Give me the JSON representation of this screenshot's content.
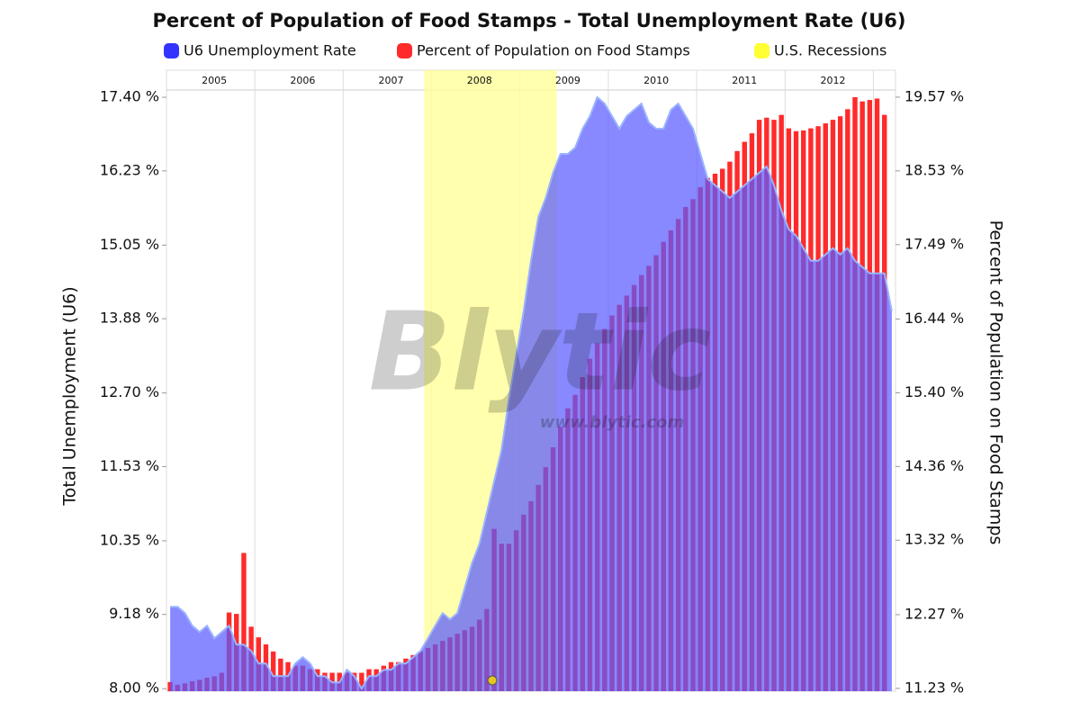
{
  "chart_data": {
    "type": "bar_area",
    "title": "Percent of Population of Food Stamps - Total Unemployment Rate (U6)",
    "y_label": "Total Unemployment (U6)",
    "y2_label": "Percent of Population on Food Stamps",
    "watermark": "Blytic",
    "watermark_url": "www.blytic.com",
    "categories": [
      null,
      null,
      null,
      null,
      null,
      null,
      "2005",
      null,
      null,
      null,
      null,
      null,
      null,
      null,
      null,
      null,
      null,
      null,
      "2006",
      null,
      null,
      null,
      null,
      null,
      null,
      null,
      null,
      null,
      null,
      null,
      "2007",
      null,
      null,
      null,
      null,
      null,
      null,
      null,
      null,
      null,
      null,
      null,
      "2008",
      null,
      null,
      null,
      null,
      null,
      null,
      null,
      null,
      null,
      null,
      null,
      "2009",
      null,
      null,
      null,
      null,
      null,
      null,
      null,
      null,
      null,
      null,
      null,
      "2010",
      null,
      null,
      null,
      null,
      null,
      null,
      null,
      null,
      null,
      null,
      null,
      "2011",
      null,
      null,
      null,
      null,
      null,
      null,
      null,
      null,
      null,
      null,
      null,
      "2012",
      null,
      null,
      null,
      null,
      null,
      null,
      null,
      null
    ],
    "series": [
      {
        "name": "U6 Unemployment Rate",
        "color": "#5a5aff",
        "type": "area",
        "axis": "y",
        "values": [
          9.3,
          9.3,
          9.2,
          9.0,
          8.9,
          9.0,
          8.8,
          8.9,
          9.0,
          8.7,
          8.7,
          8.6,
          8.4,
          8.4,
          8.2,
          8.2,
          8.2,
          8.4,
          8.5,
          8.4,
          8.2,
          8.2,
          8.1,
          8.1,
          8.3,
          8.2,
          8.0,
          8.2,
          8.2,
          8.3,
          8.3,
          8.4,
          8.4,
          8.5,
          8.6,
          8.8,
          9.0,
          9.2,
          9.1,
          9.2,
          9.6,
          10.0,
          10.3,
          10.8,
          11.3,
          11.8,
          12.6,
          13.3,
          14.0,
          14.8,
          15.5,
          15.8,
          16.2,
          16.5,
          16.5,
          16.6,
          16.9,
          17.1,
          17.4,
          17.3,
          17.1,
          16.9,
          17.1,
          17.2,
          17.3,
          17.0,
          16.9,
          16.9,
          17.2,
          17.3,
          17.1,
          16.9,
          16.5,
          16.1,
          16.0,
          15.9,
          15.8,
          15.9,
          16.0,
          16.1,
          16.2,
          16.3,
          16.0,
          15.6,
          15.3,
          15.2,
          15.0,
          14.8,
          14.8,
          14.9,
          15.0,
          14.9,
          15.0,
          14.8,
          14.7,
          14.6,
          14.6,
          14.6,
          14.0
        ]
      },
      {
        "name": "Percent of Population on Food Stamps",
        "color": "#ff2a2a",
        "type": "bar",
        "axis": "y2",
        "values": [
          11.32,
          11.28,
          11.3,
          11.33,
          11.35,
          11.38,
          11.4,
          11.45,
          12.3,
          12.28,
          13.14,
          12.1,
          11.95,
          11.85,
          11.75,
          11.65,
          11.6,
          11.55,
          11.55,
          11.5,
          11.5,
          11.45,
          11.45,
          11.45,
          11.45,
          11.45,
          11.45,
          11.5,
          11.5,
          11.55,
          11.6,
          11.6,
          11.65,
          11.7,
          11.75,
          11.8,
          11.85,
          11.9,
          11.95,
          12.0,
          12.05,
          12.1,
          12.2,
          12.35,
          13.48,
          13.27,
          13.27,
          13.46,
          13.68,
          13.87,
          14.1,
          14.35,
          14.63,
          14.92,
          15.18,
          15.37,
          15.62,
          15.88,
          16.1,
          16.3,
          16.49,
          16.64,
          16.77,
          16.92,
          17.06,
          17.19,
          17.34,
          17.53,
          17.69,
          17.85,
          18.02,
          18.13,
          18.3,
          18.43,
          18.49,
          18.56,
          18.66,
          18.81,
          18.94,
          19.06,
          19.25,
          19.28,
          19.25,
          19.32,
          19.13,
          19.09,
          19.1,
          19.13,
          19.16,
          19.2,
          19.25,
          19.3,
          19.4,
          19.57,
          19.51,
          19.53,
          19.55,
          19.32,
          null
        ]
      },
      {
        "name": "U.S. Recessions",
        "color": "#ffff99",
        "type": "band",
        "range": [
          35,
          52
        ]
      }
    ],
    "ylim": [
      7.96,
      17.83
    ],
    "yticks": [
      {
        "value": 8.0,
        "label": "8.00 %"
      },
      {
        "value": 9.18,
        "label": "9.18 %"
      },
      {
        "value": 10.35,
        "label": "10.35 %"
      },
      {
        "value": 11.53,
        "label": "11.53 %"
      },
      {
        "value": 12.7,
        "label": "12.70 %"
      },
      {
        "value": 13.88,
        "label": "13.88 %"
      },
      {
        "value": 15.05,
        "label": "15.05 %"
      },
      {
        "value": 16.23,
        "label": "16.23 %"
      },
      {
        "value": 17.4,
        "label": "17.40 %"
      }
    ],
    "y2lim": [
      11.19,
      19.95
    ],
    "y2ticks": [
      {
        "value": 11.23,
        "label": "11.23 %"
      },
      {
        "value": 12.27,
        "label": "12.27 %"
      },
      {
        "value": 13.32,
        "label": "13.32 %"
      },
      {
        "value": 14.36,
        "label": "14.36 %"
      },
      {
        "value": 15.4,
        "label": "15.40 %"
      },
      {
        "value": 16.44,
        "label": "16.44 %"
      },
      {
        "value": 17.49,
        "label": "17.49 %"
      },
      {
        "value": 18.53,
        "label": "18.53 %"
      },
      {
        "value": 19.57,
        "label": "19.57 %"
      }
    ],
    "legend": "top"
  }
}
